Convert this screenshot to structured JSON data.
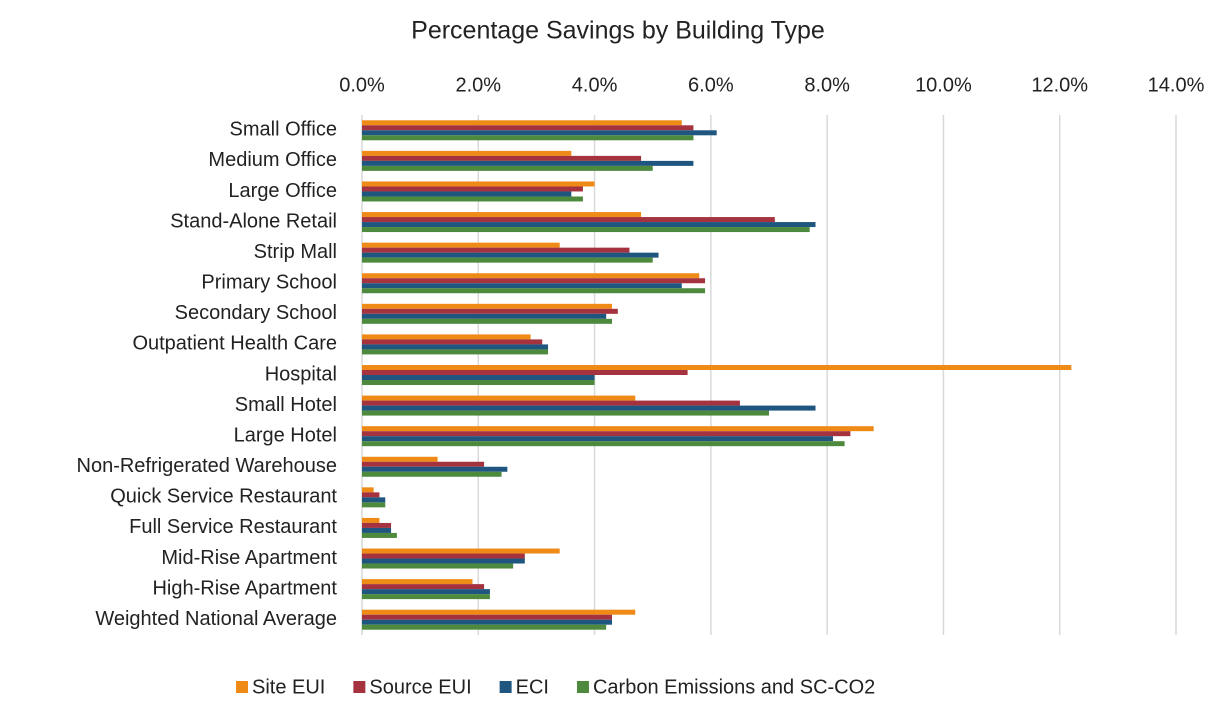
{
  "chart_data": {
    "type": "barh",
    "title": "Percentage Savings by Building Type",
    "categories": [
      "Small Office",
      "Medium Office",
      "Large Office",
      "Stand-Alone Retail",
      "Strip Mall",
      "Primary School",
      "Secondary School",
      "Outpatient Health Care",
      "Hospital",
      "Small Hotel",
      "Large Hotel",
      "Non-Refrigerated Warehouse",
      "Quick Service Restaurant",
      "Full Service Restaurant",
      "Mid-Rise Apartment",
      "High-Rise Apartment",
      "Weighted National Average"
    ],
    "series": [
      {
        "name": "Site EUI",
        "color": "#ef8a17",
        "values": [
          5.5,
          3.6,
          4.0,
          4.8,
          3.4,
          5.8,
          4.3,
          2.9,
          12.2,
          4.7,
          8.8,
          1.3,
          0.2,
          0.3,
          3.4,
          1.9,
          4.7
        ]
      },
      {
        "name": "Source EUI",
        "color": "#a5333f",
        "values": [
          5.7,
          4.8,
          3.8,
          7.1,
          4.6,
          5.9,
          4.4,
          3.1,
          5.6,
          6.5,
          8.4,
          2.1,
          0.3,
          0.5,
          2.8,
          2.1,
          4.3
        ]
      },
      {
        "name": "ECI",
        "color": "#1f5680",
        "values": [
          6.1,
          5.7,
          3.6,
          7.8,
          5.1,
          5.5,
          4.2,
          3.2,
          4.0,
          7.8,
          8.1,
          2.5,
          0.4,
          0.5,
          2.8,
          2.2,
          4.3
        ]
      },
      {
        "name": "Carbon Emissions and SC-CO2",
        "color": "#4e8a3e",
        "values": [
          5.7,
          5.0,
          3.8,
          7.7,
          5.0,
          5.9,
          4.3,
          3.2,
          4.0,
          7.0,
          8.3,
          2.4,
          0.4,
          0.6,
          2.6,
          2.2,
          4.2
        ]
      }
    ],
    "xlim": [
      0,
      14
    ],
    "xticks": [
      {
        "value": 0,
        "label": "0.0%"
      },
      {
        "value": 2,
        "label": "2.0%"
      },
      {
        "value": 4,
        "label": "4.0%"
      },
      {
        "value": 6,
        "label": "6.0%"
      },
      {
        "value": 8,
        "label": "8.0%"
      },
      {
        "value": 10,
        "label": "10.0%"
      },
      {
        "value": 12,
        "label": "12.0%"
      },
      {
        "value": 14,
        "label": "14.0%"
      }
    ],
    "grid": true,
    "legend": "bottom"
  }
}
